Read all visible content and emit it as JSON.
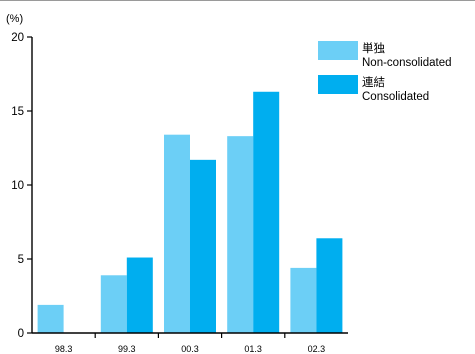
{
  "chart_data": {
    "type": "bar",
    "unit_label": "(%)",
    "categories": [
      "98.3",
      "99.3",
      "00.3",
      "01.3",
      "02.3"
    ],
    "series": [
      {
        "name_ja": "単独",
        "name": "Non-consolidated",
        "color": "#6ccff6",
        "values": [
          1.9,
          3.9,
          13.4,
          13.3,
          4.4
        ]
      },
      {
        "name_ja": "連結",
        "name": "Consolidated",
        "color": "#00aeef",
        "values": [
          null,
          5.1,
          11.7,
          16.3,
          6.4
        ]
      }
    ],
    "yticks": [
      "0",
      "5",
      "10",
      "15",
      "20"
    ],
    "ylim": [
      0,
      20
    ],
    "grid": false,
    "legend": "top-right"
  }
}
